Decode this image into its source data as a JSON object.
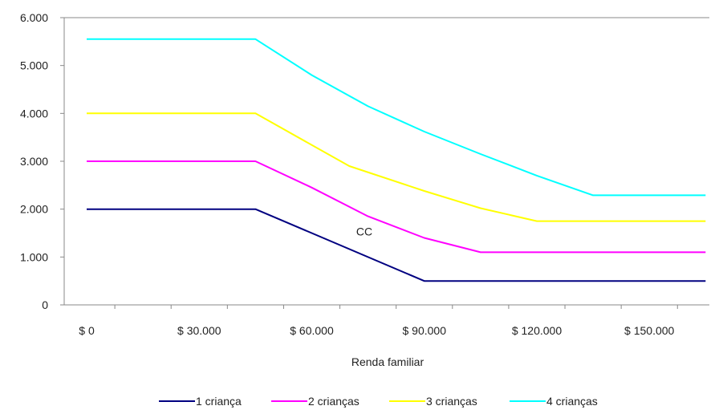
{
  "chart_data": {
    "type": "line",
    "title": "",
    "xlabel": "Renda familiar",
    "ylabel": "",
    "xlim": [
      -6000,
      166000
    ],
    "ylim": [
      0,
      6000
    ],
    "x_ticks": [
      0,
      30000,
      60000,
      90000,
      120000,
      150000
    ],
    "x_tick_labels": [
      "$ 0",
      "$ 30.000",
      "$ 60.000",
      "$ 90.000",
      "$ 120.000",
      "$ 150.000"
    ],
    "y_ticks": [
      0,
      1000,
      2000,
      3000,
      4000,
      5000,
      6000
    ],
    "y_tick_labels": [
      "0",
      "1.000",
      "2.000",
      "3.000",
      "4.000",
      "5.000",
      "6.000"
    ],
    "grid": false,
    "legend_position": "bottom",
    "annotations": [
      {
        "text": "CC",
        "x": 74000,
        "y": 1450
      }
    ],
    "series": [
      {
        "name": "1 criança",
        "color": "#000080",
        "points": [
          [
            0,
            2000
          ],
          [
            45000,
            2000
          ],
          [
            90000,
            500
          ],
          [
            165000,
            500
          ]
        ]
      },
      {
        "name": "2 crianças",
        "color": "#ff00ff",
        "points": [
          [
            0,
            3000
          ],
          [
            45000,
            3000
          ],
          [
            60000,
            2450
          ],
          [
            75000,
            1850
          ],
          [
            90000,
            1400
          ],
          [
            105000,
            1100
          ],
          [
            165000,
            1100
          ]
        ]
      },
      {
        "name": "3 crianças",
        "color": "#ffff00",
        "points": [
          [
            0,
            4000
          ],
          [
            45000,
            4000
          ],
          [
            70000,
            2900
          ],
          [
            90000,
            2380
          ],
          [
            105000,
            2020
          ],
          [
            120000,
            1750
          ],
          [
            165000,
            1750
          ]
        ]
      },
      {
        "name": "4 crianças",
        "color": "#00ffff",
        "points": [
          [
            0,
            5550
          ],
          [
            45000,
            5550
          ],
          [
            60000,
            4800
          ],
          [
            75000,
            4150
          ],
          [
            90000,
            3620
          ],
          [
            105000,
            3150
          ],
          [
            120000,
            2700
          ],
          [
            135000,
            2290
          ],
          [
            165000,
            2290
          ]
        ]
      }
    ]
  }
}
